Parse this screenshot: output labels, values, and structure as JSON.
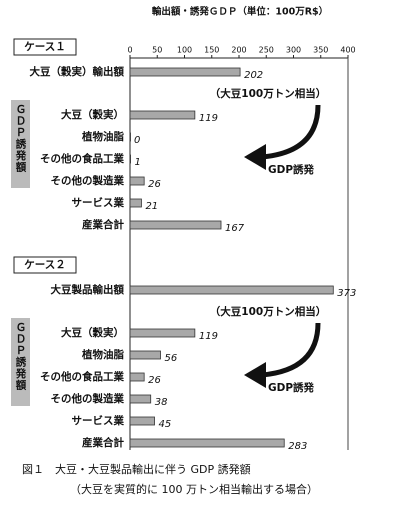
{
  "chart_data": {
    "type": "bar",
    "title": "輸出額・誘発ＧＤＰ（単位：100万R$）",
    "xlim": [
      0,
      400
    ],
    "xticks": [
      0,
      50,
      100,
      150,
      200,
      250,
      300,
      350,
      400
    ],
    "color": "#a8a8a8",
    "panels": [
      {
        "label": "ケース１",
        "export_category": "大豆（穀実）輸出額",
        "export_value": 202,
        "side_label": "ＧＤＰ誘発額",
        "note": "（大豆100万トン相当）",
        "arrow_label": "GDP誘発",
        "categories": [
          "大豆（穀実）",
          "植物油脂",
          "その他の食品工業",
          "その他の製造業",
          "サービス業",
          "産業合計"
        ],
        "values": [
          119,
          0,
          1,
          26,
          21,
          167
        ]
      },
      {
        "label": "ケース２",
        "export_category": "大豆製品輸出額",
        "export_value": 373,
        "side_label": "ＧＤＰ誘発額",
        "note": "（大豆100万トン相当）",
        "arrow_label": "GDP誘発",
        "categories": [
          "大豆（穀実）",
          "植物油脂",
          "その他の食品工業",
          "その他の製造業",
          "サービス業",
          "産業合計"
        ],
        "values": [
          119,
          56,
          26,
          38,
          45,
          283
        ]
      }
    ]
  },
  "caption": [
    "図１　大豆・大豆製品輸出に伴う GDP 誘発額",
    "（大豆を実質的に 100 万トン相当輸出する場合）"
  ]
}
